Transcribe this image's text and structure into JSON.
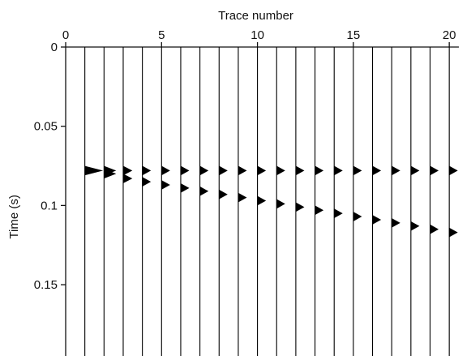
{
  "chart_data": {
    "type": "seismic-wiggle",
    "xlabel": "Trace number",
    "ylabel": "Time (s)",
    "x_axis_position": "top",
    "y_inverted": true,
    "xlim": [
      0,
      20.5
    ],
    "ylim": [
      0,
      0.195
    ],
    "x_ticks": [
      0,
      5,
      10,
      15,
      20
    ],
    "x_tick_labels": [
      "0",
      "5",
      "10",
      "15",
      "20"
    ],
    "y_ticks": [
      0,
      0.05,
      0.1,
      0.15
    ],
    "y_tick_labels": [
      "0",
      "0.05",
      "0.1",
      "0.15"
    ],
    "grid": false,
    "trace_count": 20,
    "trace_color": "#000000",
    "series": [
      {
        "traces": [
          1,
          2,
          3,
          4,
          5,
          6,
          7,
          8,
          9,
          10,
          11,
          12,
          13,
          14,
          15,
          16,
          17,
          18,
          19,
          20
        ],
        "times": [
          0.078,
          0.078,
          0.078,
          0.078,
          0.078,
          0.078,
          0.078,
          0.078,
          0.078,
          0.078,
          0.078,
          0.078,
          0.078,
          0.078,
          0.078,
          0.078,
          0.078,
          0.078,
          0.078,
          0.078
        ],
        "amplitudes": [
          0.9,
          0.6,
          0.45,
          0.42,
          0.42,
          0.42,
          0.42,
          0.42,
          0.42,
          0.42,
          0.42,
          0.42,
          0.42,
          0.42,
          0.42,
          0.42,
          0.42,
          0.42,
          0.42,
          0.42
        ]
      },
      {
        "traces": [
          2,
          3,
          4,
          5,
          6,
          7,
          8,
          9,
          10,
          11,
          12,
          13,
          14,
          15,
          16,
          17,
          18,
          19,
          20
        ],
        "times": [
          0.08,
          0.083,
          0.085,
          0.087,
          0.089,
          0.091,
          0.093,
          0.095,
          0.097,
          0.099,
          0.101,
          0.103,
          0.105,
          0.107,
          0.109,
          0.111,
          0.113,
          0.115,
          0.117
        ],
        "amplitudes": [
          0.6,
          0.45,
          0.42,
          0.42,
          0.42,
          0.42,
          0.42,
          0.42,
          0.42,
          0.42,
          0.42,
          0.42,
          0.42,
          0.42,
          0.42,
          0.42,
          0.42,
          0.42,
          0.42
        ]
      }
    ]
  }
}
